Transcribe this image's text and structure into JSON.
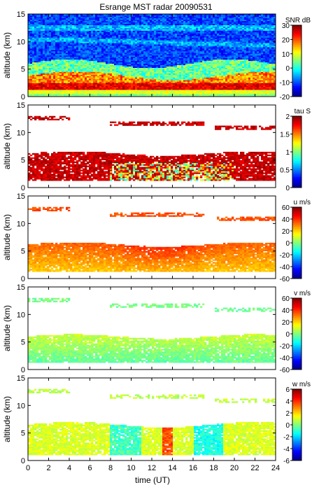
{
  "figure": {
    "title": "Esrange MST radar 20090531",
    "xlabel": "time (UT)"
  },
  "chart_data": [
    {
      "type": "heatmap",
      "id": "snr",
      "xlim": [
        0,
        24
      ],
      "ylim": [
        0,
        15
      ],
      "xticks": [
        0,
        2,
        4,
        6,
        8,
        10,
        12,
        14,
        16,
        18,
        20,
        22,
        24
      ],
      "yticks": [
        0,
        5,
        10,
        15
      ],
      "ylabel": "altitude (km)",
      "colorbar_label": "SNR dB",
      "colorbar_range": [
        -20,
        30
      ],
      "colorbar_ticks": [
        -20,
        -10,
        0,
        10,
        20,
        30
      ],
      "description_levels": [
        {
          "altitude_km": [
            0,
            1
          ],
          "value": 5
        },
        {
          "altitude_km": [
            1.5,
            2.5
          ],
          "value": 25
        },
        {
          "altitude_km": [
            2.5,
            5
          ],
          "value": 15
        },
        {
          "altitude_km": [
            5,
            15
          ],
          "value": -5
        }
      ]
    },
    {
      "type": "heatmap",
      "id": "tau",
      "xlim": [
        0,
        24
      ],
      "ylim": [
        0,
        15
      ],
      "xticks": [
        0,
        2,
        4,
        6,
        8,
        10,
        12,
        14,
        16,
        18,
        20,
        22,
        24
      ],
      "yticks": [
        0,
        5,
        10,
        15
      ],
      "ylabel": "altitude (km)",
      "colorbar_label": "tau S",
      "colorbar_range": [
        0,
        2
      ],
      "colorbar_ticks": [
        0,
        0.5,
        1,
        1.5,
        2
      ]
    },
    {
      "type": "heatmap",
      "id": "u",
      "xlim": [
        0,
        24
      ],
      "ylim": [
        0,
        15
      ],
      "xticks": [
        0,
        2,
        4,
        6,
        8,
        10,
        12,
        14,
        16,
        18,
        20,
        22,
        24
      ],
      "yticks": [
        0,
        5,
        10,
        15
      ],
      "ylabel": "altitude (km)",
      "colorbar_label": "u m/s",
      "colorbar_range": [
        -60,
        60
      ],
      "colorbar_ticks": [
        -60,
        -40,
        -20,
        0,
        20,
        40,
        60
      ]
    },
    {
      "type": "heatmap",
      "id": "v",
      "xlim": [
        0,
        24
      ],
      "ylim": [
        0,
        15
      ],
      "xticks": [
        0,
        2,
        4,
        6,
        8,
        10,
        12,
        14,
        16,
        18,
        20,
        22,
        24
      ],
      "yticks": [
        0,
        5,
        10,
        15
      ],
      "ylabel": "altitude (km)",
      "colorbar_label": "v m/s",
      "colorbar_range": [
        -60,
        60
      ],
      "colorbar_ticks": [
        -60,
        -40,
        -20,
        0,
        20,
        40,
        60
      ]
    },
    {
      "type": "heatmap",
      "id": "w",
      "xlim": [
        0,
        24
      ],
      "ylim": [
        0,
        15
      ],
      "xticks": [
        0,
        2,
        4,
        6,
        8,
        10,
        12,
        14,
        16,
        18,
        20,
        22,
        24
      ],
      "yticks": [
        0,
        5,
        10,
        15
      ],
      "ylabel": "altitude (km)",
      "colorbar_label": "w m/s",
      "colorbar_range": [
        -6,
        6
      ],
      "colorbar_ticks": [
        -6,
        -4,
        -2,
        0,
        2,
        4,
        6
      ]
    }
  ]
}
